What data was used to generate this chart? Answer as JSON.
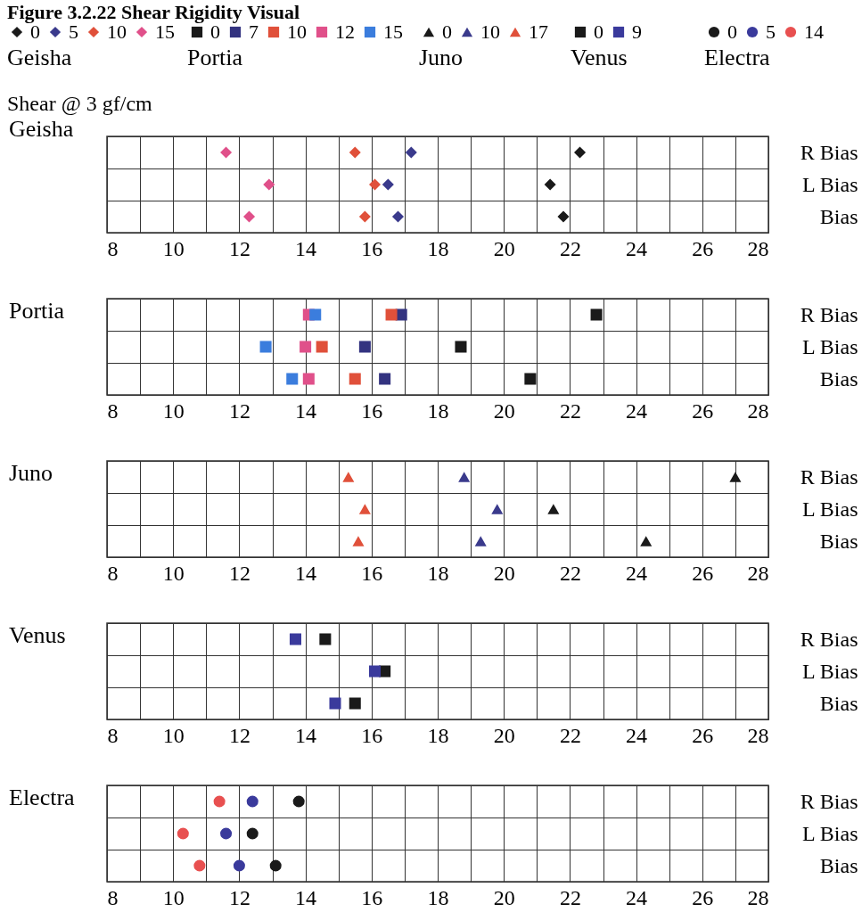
{
  "chart_data": [
    {
      "type": "scatter",
      "orientation": "horizontal",
      "title": "Geisha",
      "legend_title": "Geisha",
      "annotations": [
        "Figure 3.2.22 Shear Rigidity Visual",
        "Shear @ 3 gf/cm"
      ],
      "marker": "diamond",
      "legend": "top left",
      "grid": true,
      "categories": [
        "R Bias",
        "L Bias",
        "Bias"
      ],
      "xlim": [
        8,
        28
      ],
      "xticks": [
        8,
        {
          "value": 9,
          "label": null
        },
        10,
        {
          "value": 11,
          "label": null
        },
        12,
        {
          "value": 13,
          "label": null
        },
        14,
        {
          "value": 15,
          "label": null
        },
        16,
        {
          "value": 17,
          "label": null
        },
        18,
        {
          "value": 19,
          "label": null
        },
        20,
        {
          "value": 21,
          "label": null
        },
        22,
        {
          "value": 23,
          "label": null
        },
        24,
        {
          "value": 25,
          "label": null
        },
        26,
        {
          "value": 27,
          "label": null
        },
        28
      ],
      "series": [
        {
          "name": "0",
          "color": "#1a1a1a",
          "values": [
            22.3,
            21.4,
            21.8
          ]
        },
        {
          "name": "5",
          "color": "#3a3a8c",
          "values": [
            17.2,
            16.5,
            16.8
          ]
        },
        {
          "name": "10",
          "color": "#e0503a",
          "values": [
            15.5,
            16.1,
            15.8
          ]
        },
        {
          "name": "15",
          "color": "#e0508a",
          "values": [
            11.6,
            12.9,
            12.3
          ]
        }
      ]
    },
    {
      "type": "scatter",
      "orientation": "horizontal",
      "title": "Portia",
      "legend_title": "Portia",
      "marker": "square",
      "legend": "top",
      "grid": true,
      "categories": [
        "R Bias",
        "L Bias",
        "Bias"
      ],
      "xlim": [
        8,
        28
      ],
      "xticks": [
        8,
        {
          "value": 9,
          "label": null
        },
        10,
        {
          "value": 11,
          "label": null
        },
        12,
        {
          "value": 13,
          "label": null
        },
        14,
        {
          "value": 15,
          "label": null
        },
        16,
        {
          "value": 17,
          "label": null
        },
        18,
        {
          "value": 19,
          "label": null
        },
        20,
        {
          "value": 21,
          "label": null
        },
        22,
        {
          "value": 23,
          "label": null
        },
        24,
        {
          "value": 25,
          "label": null
        },
        26,
        {
          "value": 27,
          "label": null
        },
        28
      ],
      "series": [
        {
          "name": "0",
          "color": "#1a1a1a",
          "values": [
            22.8,
            18.7,
            20.8
          ]
        },
        {
          "name": "7",
          "color": "#333380",
          "values": [
            16.9,
            15.8,
            16.4
          ]
        },
        {
          "name": "10",
          "color": "#e0503a",
          "values": [
            16.6,
            14.5,
            15.5
          ]
        },
        {
          "name": "12",
          "color": "#e0508a",
          "values": [
            14.1,
            14.0,
            14.1
          ]
        },
        {
          "name": "15",
          "color": "#3b7ddd",
          "values": [
            14.3,
            12.8,
            13.6
          ]
        }
      ]
    },
    {
      "type": "scatter",
      "orientation": "horizontal",
      "title": "Juno",
      "legend_title": "Juno",
      "marker": "triangle",
      "legend": "top",
      "grid": true,
      "categories": [
        "R Bias",
        "L Bias",
        "Bias"
      ],
      "xlim": [
        8,
        28
      ],
      "xticks": [
        8,
        {
          "value": 9,
          "label": null
        },
        10,
        {
          "value": 11,
          "label": null
        },
        12,
        {
          "value": 13,
          "label": null
        },
        14,
        {
          "value": 15,
          "label": null
        },
        16,
        {
          "value": 17,
          "label": null
        },
        18,
        {
          "value": 19,
          "label": null
        },
        20,
        {
          "value": 21,
          "label": null
        },
        22,
        {
          "value": 23,
          "label": null
        },
        24,
        {
          "value": 25,
          "label": null
        },
        26,
        {
          "value": 27,
          "label": null
        },
        28
      ],
      "series": [
        {
          "name": "0",
          "color": "#1a1a1a",
          "values": [
            27.0,
            21.5,
            24.3
          ]
        },
        {
          "name": "10",
          "color": "#3a3a8c",
          "values": [
            18.8,
            19.8,
            19.3
          ]
        },
        {
          "name": "17",
          "color": "#e0503a",
          "values": [
            15.3,
            15.8,
            15.6
          ]
        }
      ]
    },
    {
      "type": "scatter",
      "orientation": "horizontal",
      "title": "Venus",
      "legend_title": "Venus",
      "marker": "square",
      "legend": "top",
      "grid": true,
      "categories": [
        "R Bias",
        "L Bias",
        "Bias"
      ],
      "xlim": [
        8,
        28
      ],
      "xticks": [
        8,
        {
          "value": 9,
          "label": null
        },
        10,
        {
          "value": 11,
          "label": null
        },
        12,
        {
          "value": 13,
          "label": null
        },
        14,
        {
          "value": 15,
          "label": null
        },
        16,
        {
          "value": 17,
          "label": null
        },
        18,
        {
          "value": 19,
          "label": null
        },
        20,
        {
          "value": 21,
          "label": null
        },
        22,
        {
          "value": 23,
          "label": null
        },
        24,
        {
          "value": 25,
          "label": null
        },
        26,
        {
          "value": 27,
          "label": null
        },
        28
      ],
      "series": [
        {
          "name": "0",
          "color": "#1a1a1a",
          "values": [
            14.6,
            16.4,
            15.5
          ]
        },
        {
          "name": "9",
          "color": "#3a3a9c",
          "values": [
            13.7,
            16.1,
            14.9
          ]
        }
      ]
    },
    {
      "type": "scatter",
      "orientation": "horizontal",
      "title": "Electra",
      "legend_title": "Electra",
      "marker": "circle",
      "legend": "top right",
      "grid": true,
      "categories": [
        "R Bias",
        "L Bias",
        "Bias"
      ],
      "xlim": [
        8,
        28
      ],
      "xticks": [
        8,
        {
          "value": 9,
          "label": null
        },
        10,
        {
          "value": 11,
          "label": null
        },
        12,
        {
          "value": 13,
          "label": null
        },
        14,
        {
          "value": 15,
          "label": null
        },
        16,
        {
          "value": 17,
          "label": null
        },
        18,
        {
          "value": 19,
          "label": null
        },
        20,
        {
          "value": 21,
          "label": null
        },
        22,
        {
          "value": 23,
          "label": null
        },
        24,
        {
          "value": 25,
          "label": null
        },
        26,
        {
          "value": 27,
          "label": null
        },
        28
      ],
      "series": [
        {
          "name": "0",
          "color": "#1a1a1a",
          "values": [
            13.8,
            12.4,
            13.1
          ]
        },
        {
          "name": "5",
          "color": "#3a3a9c",
          "values": [
            12.4,
            11.6,
            12.0
          ]
        },
        {
          "name": "14",
          "color": "#e85050",
          "values": [
            11.4,
            10.3,
            10.8
          ]
        }
      ]
    }
  ]
}
